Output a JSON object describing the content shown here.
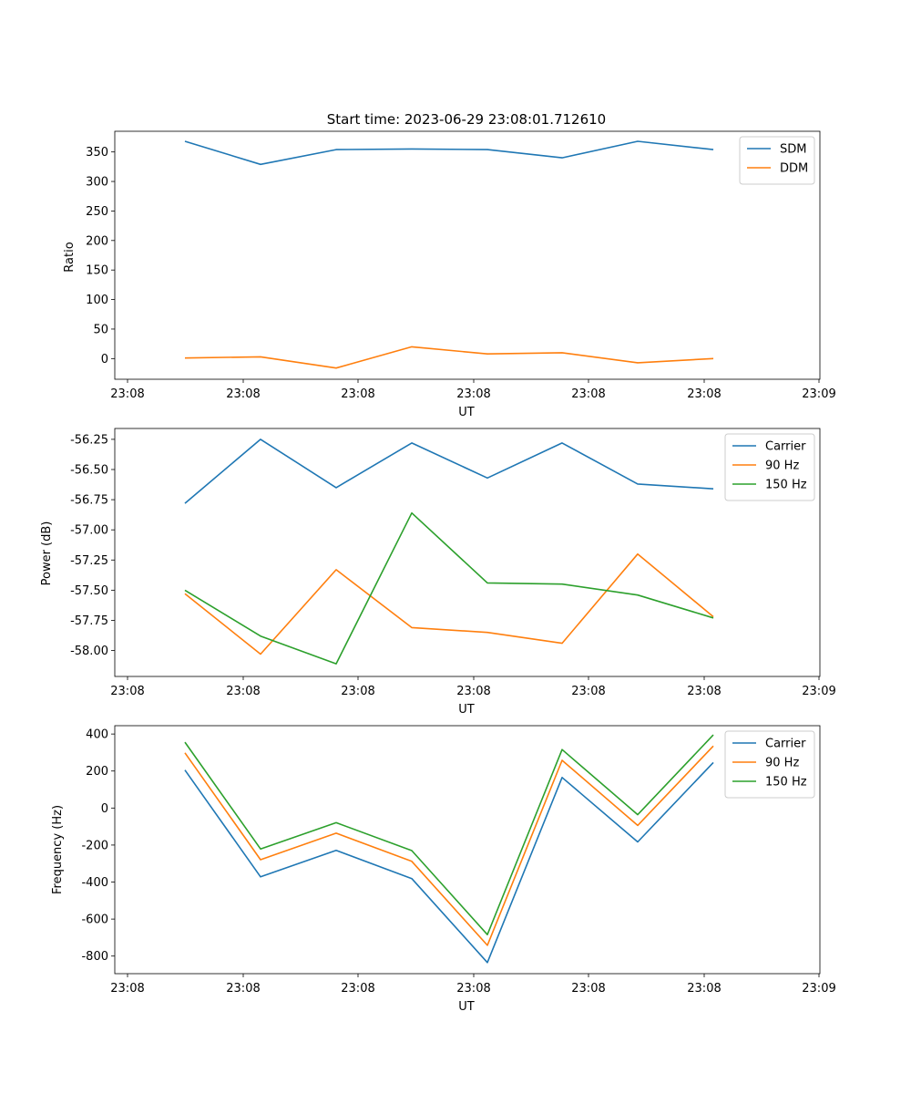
{
  "title": "Start time: 2023-06-29 23:08:01.712610",
  "colors": {
    "blue": "#1f77b4",
    "orange": "#ff7f0e",
    "green": "#2ca02c"
  },
  "chart_data": [
    {
      "type": "line",
      "xlabel": "UT",
      "ylabel": "Ratio",
      "x_tick_labels": [
        "23:08",
        "23:08",
        "23:08",
        "23:08",
        "23:08",
        "23:08",
        "23:09"
      ],
      "yticks": [
        "0",
        "50",
        "100",
        "150",
        "200",
        "250",
        "300",
        "350"
      ],
      "ylim": [
        -35,
        385
      ],
      "legend_position": "top-right",
      "series": [
        {
          "name": "SDM",
          "color": "#1f77b4",
          "values": [
            368,
            329,
            354,
            355,
            354,
            340,
            368,
            354
          ]
        },
        {
          "name": "DDM",
          "color": "#ff7f0e",
          "values": [
            1,
            3,
            -16,
            20,
            8,
            10,
            -7,
            0
          ]
        }
      ]
    },
    {
      "type": "line",
      "xlabel": "UT",
      "ylabel": "Power (dB)",
      "x_tick_labels": [
        "23:08",
        "23:08",
        "23:08",
        "23:08",
        "23:08",
        "23:08",
        "23:09"
      ],
      "yticks": [
        "-58.00",
        "-57.75",
        "-57.50",
        "-57.25",
        "-57.00",
        "-56.75",
        "-56.50",
        "-56.25"
      ],
      "ylim": [
        -58.215,
        -56.16
      ],
      "legend_position": "top-right",
      "series": [
        {
          "name": "Carrier",
          "color": "#1f77b4",
          "values": [
            -56.78,
            -56.25,
            -56.65,
            -56.28,
            -56.57,
            -56.28,
            -56.62,
            -56.66
          ]
        },
        {
          "name": "90 Hz",
          "color": "#ff7f0e",
          "values": [
            -57.53,
            -58.03,
            -57.33,
            -57.81,
            -57.85,
            -57.94,
            -57.2,
            -57.72
          ]
        },
        {
          "name": "150 Hz",
          "color": "#2ca02c",
          "values": [
            -57.5,
            -57.88,
            -58.11,
            -56.86,
            -57.44,
            -57.45,
            -57.54,
            -57.73
          ]
        }
      ]
    },
    {
      "type": "line",
      "xlabel": "UT",
      "ylabel": "Frequency (Hz)",
      "x_tick_labels": [
        "23:08",
        "23:08",
        "23:08",
        "23:08",
        "23:08",
        "23:08",
        "23:09"
      ],
      "yticks": [
        "-800",
        "-600",
        "-400",
        "-200",
        "0",
        "200",
        "400"
      ],
      "ylim": [
        -895,
        445
      ],
      "legend_position": "top-right",
      "series": [
        {
          "name": "Carrier",
          "color": "#1f77b4",
          "values": [
            205,
            -372,
            -229,
            -381,
            -835,
            165,
            -183,
            246
          ]
        },
        {
          "name": "90 Hz",
          "color": "#ff7f0e",
          "values": [
            298,
            -279,
            -136,
            -288,
            -742,
            258,
            -94,
            335
          ]
        },
        {
          "name": "150 Hz",
          "color": "#2ca02c",
          "values": [
            356,
            -221,
            -79,
            -230,
            -684,
            316,
            -36,
            395
          ]
        }
      ]
    }
  ]
}
